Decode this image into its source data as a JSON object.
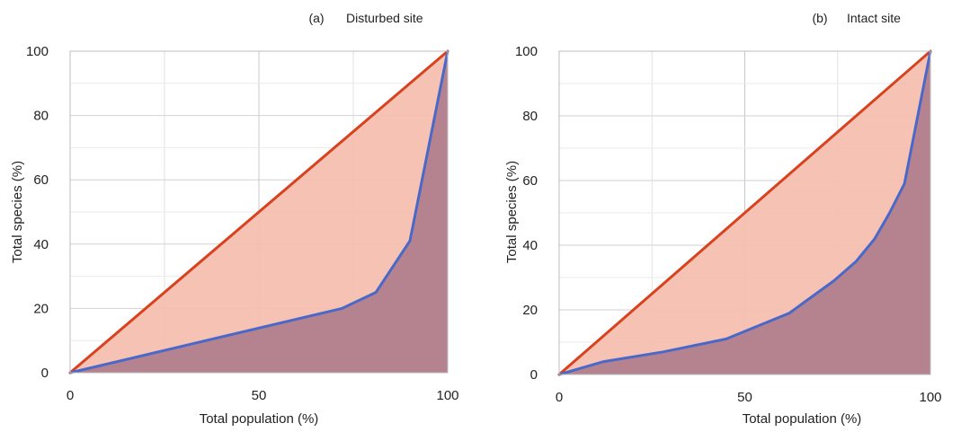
{
  "chart_data": [
    {
      "type": "area",
      "panel_label": "(a)",
      "title": "Disturbed site",
      "xlabel": "Total population (%)",
      "ylabel": "Total species (%)",
      "xlim": [
        0,
        100
      ],
      "ylim": [
        0,
        100
      ],
      "x_ticks": [
        "0",
        "50",
        "100"
      ],
      "y_ticks": [
        "0",
        "20",
        "40",
        "60",
        "80",
        "100"
      ],
      "grid": true,
      "series": [
        {
          "color": "#d8421f",
          "x": [
            0,
            100
          ],
          "y": [
            0,
            100
          ]
        },
        {
          "color": "#4a68c8",
          "x": [
            0,
            72,
            81,
            90,
            100
          ],
          "y": [
            0,
            20,
            25,
            41,
            100
          ]
        }
      ],
      "fills": {
        "between": "#f4bfb0",
        "under": "#b58390"
      }
    },
    {
      "type": "area",
      "panel_label": "(b)",
      "title": "Intact site",
      "xlabel": "Total population (%)",
      "ylabel": "Total species (%)",
      "xlim": [
        0,
        100
      ],
      "ylim": [
        0,
        100
      ],
      "x_ticks": [
        "0",
        "50",
        "100"
      ],
      "y_ticks": [
        "0",
        "20",
        "40",
        "60",
        "80",
        "100"
      ],
      "grid": true,
      "series": [
        {
          "color": "#d8421f",
          "x": [
            0,
            100
          ],
          "y": [
            0,
            100
          ]
        },
        {
          "color": "#4a68c8",
          "x": [
            0,
            12,
            28,
            45,
            62,
            74,
            80,
            85,
            89,
            93,
            100
          ],
          "y": [
            0,
            4,
            7,
            11,
            19,
            29,
            35,
            42,
            50,
            59,
            100
          ]
        }
      ],
      "fills": {
        "between": "#f4bfb0",
        "under": "#b58390"
      }
    }
  ]
}
